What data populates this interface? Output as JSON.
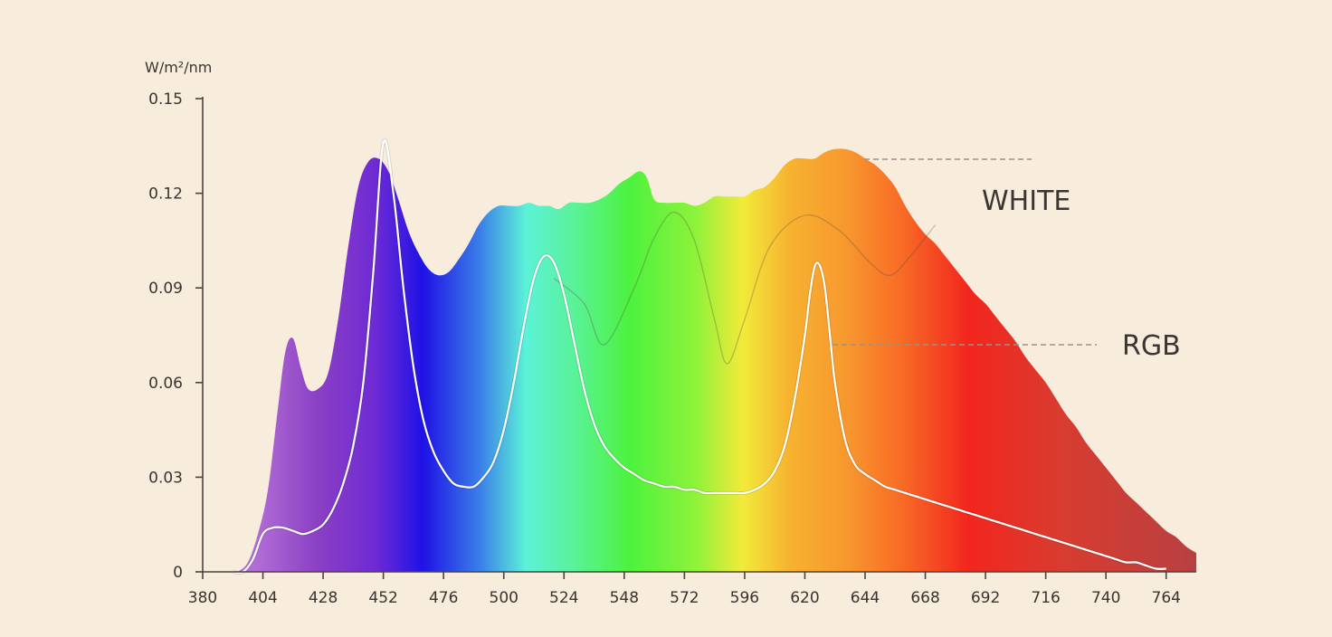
{
  "chart_data": {
    "type": "area",
    "title": "",
    "xlabel": "",
    "ylabel": "W/m²/nm",
    "xlim": [
      380,
      776
    ],
    "ylim": [
      0,
      0.15
    ],
    "x_ticks": [
      "380",
      "404",
      "428",
      "452",
      "476",
      "500",
      "524",
      "548",
      "572",
      "596",
      "620",
      "644",
      "668",
      "692",
      "716",
      "740",
      "764"
    ],
    "y_ticks": [
      "0",
      "0.03",
      "0.06",
      "0.09",
      "0.12",
      "0.15"
    ],
    "grid": false,
    "legend": "inline labels at right",
    "spectrum_colors": {
      "violet": "#8a3fc4",
      "blue": "#1f12e6",
      "cyan": "#5cf2d8",
      "green": "#4df23e",
      "yellow": "#f2ea3a",
      "orange": "#f7982e",
      "red": "#f2261e",
      "deep_red": "#b84040"
    },
    "series": [
      {
        "name": "WHITE",
        "x": [
          394,
          398,
          402,
          406,
          410,
          413,
          416,
          419,
          422,
          426,
          430,
          434,
          438,
          442,
          446,
          450,
          454,
          458,
          462,
          466,
          470,
          474,
          478,
          482,
          486,
          490,
          494,
          498,
          502,
          506,
          510,
          514,
          518,
          522,
          526,
          530,
          534,
          538,
          542,
          546,
          550,
          554,
          557,
          560,
          564,
          568,
          572,
          576,
          580,
          584,
          588,
          592,
          596,
          600,
          604,
          608,
          612,
          616,
          620,
          624,
          628,
          632,
          636,
          640,
          644,
          648,
          652,
          656,
          660,
          664,
          668,
          672,
          676,
          680,
          684,
          688,
          692,
          696,
          700,
          704,
          708,
          712,
          716,
          720,
          724,
          728,
          732,
          736,
          740,
          744,
          748,
          752,
          756,
          760,
          764,
          768,
          772,
          776
        ],
        "y": [
          0.0,
          0.003,
          0.012,
          0.026,
          0.052,
          0.07,
          0.074,
          0.065,
          0.058,
          0.058,
          0.063,
          0.08,
          0.103,
          0.122,
          0.13,
          0.131,
          0.127,
          0.118,
          0.108,
          0.101,
          0.096,
          0.094,
          0.095,
          0.099,
          0.104,
          0.11,
          0.114,
          0.116,
          0.116,
          0.116,
          0.117,
          0.116,
          0.116,
          0.115,
          0.117,
          0.117,
          0.117,
          0.118,
          0.12,
          0.123,
          0.125,
          0.127,
          0.125,
          0.118,
          0.117,
          0.117,
          0.117,
          0.116,
          0.117,
          0.119,
          0.119,
          0.119,
          0.119,
          0.121,
          0.122,
          0.125,
          0.129,
          0.131,
          0.131,
          0.131,
          0.133,
          0.134,
          0.134,
          0.133,
          0.131,
          0.129,
          0.126,
          0.122,
          0.116,
          0.111,
          0.107,
          0.104,
          0.1,
          0.096,
          0.092,
          0.088,
          0.085,
          0.081,
          0.077,
          0.073,
          0.068,
          0.064,
          0.06,
          0.055,
          0.05,
          0.046,
          0.041,
          0.037,
          0.033,
          0.029,
          0.025,
          0.022,
          0.019,
          0.016,
          0.013,
          0.011,
          0.008,
          0.006
        ]
      },
      {
        "name": "RGB",
        "x": [
          392,
          396,
          400,
          404,
          408,
          412,
          416,
          420,
          424,
          428,
          432,
          436,
          440,
          444,
          448,
          452,
          456,
          460,
          464,
          468,
          472,
          476,
          480,
          484,
          488,
          492,
          496,
          500,
          504,
          508,
          512,
          516,
          520,
          524,
          528,
          532,
          536,
          540,
          544,
          548,
          552,
          556,
          560,
          564,
          568,
          572,
          576,
          580,
          584,
          588,
          592,
          596,
          600,
          604,
          608,
          612,
          616,
          620,
          622,
          624,
          626,
          628,
          630,
          632,
          636,
          640,
          644,
          648,
          652,
          656,
          660,
          664,
          668,
          672,
          676,
          680,
          684,
          688,
          692,
          696,
          700,
          704,
          708,
          712,
          716,
          720,
          724,
          728,
          732,
          736,
          740,
          744,
          748,
          752,
          756,
          760,
          764
        ],
        "y": [
          0.0,
          0.0,
          0.004,
          0.012,
          0.014,
          0.014,
          0.013,
          0.012,
          0.013,
          0.015,
          0.02,
          0.028,
          0.04,
          0.06,
          0.095,
          0.136,
          0.12,
          0.09,
          0.065,
          0.048,
          0.038,
          0.032,
          0.028,
          0.027,
          0.027,
          0.03,
          0.035,
          0.045,
          0.06,
          0.078,
          0.093,
          0.1,
          0.098,
          0.088,
          0.073,
          0.058,
          0.047,
          0.04,
          0.036,
          0.033,
          0.031,
          0.029,
          0.028,
          0.027,
          0.027,
          0.026,
          0.026,
          0.025,
          0.025,
          0.025,
          0.025,
          0.025,
          0.026,
          0.028,
          0.032,
          0.04,
          0.055,
          0.075,
          0.088,
          0.097,
          0.097,
          0.09,
          0.075,
          0.06,
          0.042,
          0.034,
          0.031,
          0.029,
          0.027,
          0.026,
          0.025,
          0.024,
          0.023,
          0.022,
          0.021,
          0.02,
          0.019,
          0.018,
          0.017,
          0.016,
          0.015,
          0.014,
          0.013,
          0.012,
          0.011,
          0.01,
          0.009,
          0.008,
          0.007,
          0.006,
          0.005,
          0.004,
          0.003,
          0.003,
          0.002,
          0.001,
          0.001
        ]
      }
    ]
  }
}
